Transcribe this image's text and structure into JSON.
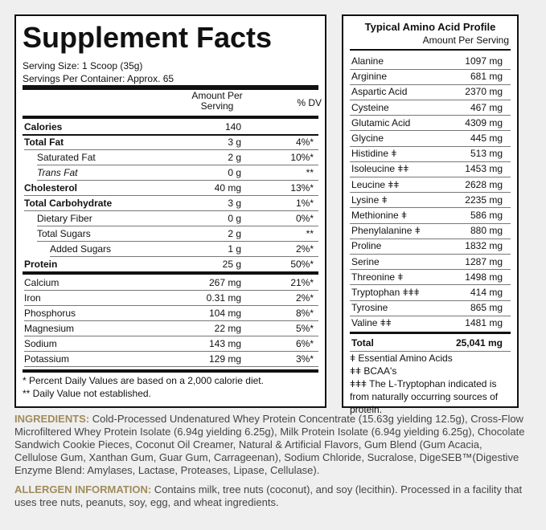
{
  "supplement_facts": {
    "title": "Supplement Facts",
    "serving_size": "Serving Size: 1 Scoop (35g)",
    "servings_per_container": "Servings Per Container: Approx. 65",
    "header": [
      "Amount Per Serving",
      "% DV"
    ],
    "rows": [
      [
        "Calories",
        "140"
      ],
      [
        "Total Fat",
        "3 g",
        "4%*"
      ],
      [
        "Saturated Fat",
        "2 g",
        "10%*"
      ],
      [
        "Trans Fat",
        "0 g",
        "**"
      ],
      [
        "Cholesterol",
        "40 mg",
        "13%*"
      ],
      [
        "Total Carbohydrate",
        "3 g",
        "1%*"
      ],
      [
        "Dietary Fiber",
        "0 g",
        "0%*"
      ],
      [
        "Total Sugars",
        "2 g",
        "**"
      ],
      [
        "Added Sugars",
        "1 g",
        "2%*"
      ],
      [
        "Protein",
        "25 g",
        "50%*"
      ],
      [
        "Calcium",
        "267 mg",
        "21%*"
      ],
      [
        "Iron",
        "0.31 mg",
        "2%*"
      ],
      [
        "Phosphorus",
        "104 mg",
        "8%*"
      ],
      [
        "Magnesium",
        "22 mg",
        "5%*"
      ],
      [
        "Sodium",
        "143 mg",
        "6%*"
      ],
      [
        "Potassium",
        "129 mg",
        "3%*"
      ]
    ],
    "footnotes": [
      "* Percent Daily Values are based on a 2,000 calorie diet.",
      "** Daily Value not established."
    ]
  },
  "amino_acid_profile": {
    "title": "Typical Amino Acid Profile",
    "subtitle": "Amount Per Serving",
    "rows": [
      [
        "Alanine",
        "1097 mg"
      ],
      [
        "Arginine",
        "681 mg"
      ],
      [
        "Aspartic Acid",
        "2370 mg"
      ],
      [
        "Cysteine",
        "467 mg"
      ],
      [
        "Glutamic Acid",
        "4309 mg"
      ],
      [
        "Glycine",
        "445 mg"
      ],
      [
        "Histidine ǂ",
        "513 mg"
      ],
      [
        "Isoleucine ǂǂ",
        "1453 mg"
      ],
      [
        "Leucine ǂǂ",
        "2628 mg"
      ],
      [
        "Lysine ǂ",
        "2235 mg"
      ],
      [
        "Methionine ǂ",
        "586 mg"
      ],
      [
        "Phenylalanine ǂ",
        "880 mg"
      ],
      [
        "Proline",
        "1832 mg"
      ],
      [
        "Serine",
        "1287 mg"
      ],
      [
        "Threonine ǂ",
        "1498 mg"
      ],
      [
        "Tryptophan ǂǂǂ",
        "414 mg"
      ],
      [
        "Tyrosine",
        "865 mg"
      ],
      [
        "Valine ǂǂ",
        "1481 mg"
      ]
    ],
    "total": [
      "Total",
      "25,041 mg"
    ],
    "notes": [
      "ǂ Essential Amino Acids",
      "ǂǂ BCAA's",
      "ǂǂǂ The L-Tryptophan indicated is from naturally occurring sources of protein."
    ]
  },
  "ingredients": {
    "label": "INGREDIENTS:",
    "text": " Cold-Processed Undenatured Whey Protein Concentrate (15.63g yielding 12.5g), Cross-Flow Microfiltered Whey Protein Isolate (6.94g yielding 6.25g), Milk Protein Isolate (6.94g yielding 6.25g), Chocolate Sandwich Cookie Pieces, Coconut Oil Creamer, Natural & Artificial Flavors, Gum Blend (Gum Acacia, Cellulose Gum, Xanthan Gum, Guar Gum, Carrageenan), Sodium Chloride, Sucralose, DigeSEB™(Digestive Enzyme Blend: Amylases, Lactase, Proteases, Lipase, Cellulase)."
  },
  "allergen": {
    "label": "ALLERGEN INFORMATION:",
    "text": " Contains milk, tree nuts (coconut), and soy (lecithin). Processed in a facility that uses tree nuts, peanuts, soy, egg, and wheat ingredients."
  }
}
